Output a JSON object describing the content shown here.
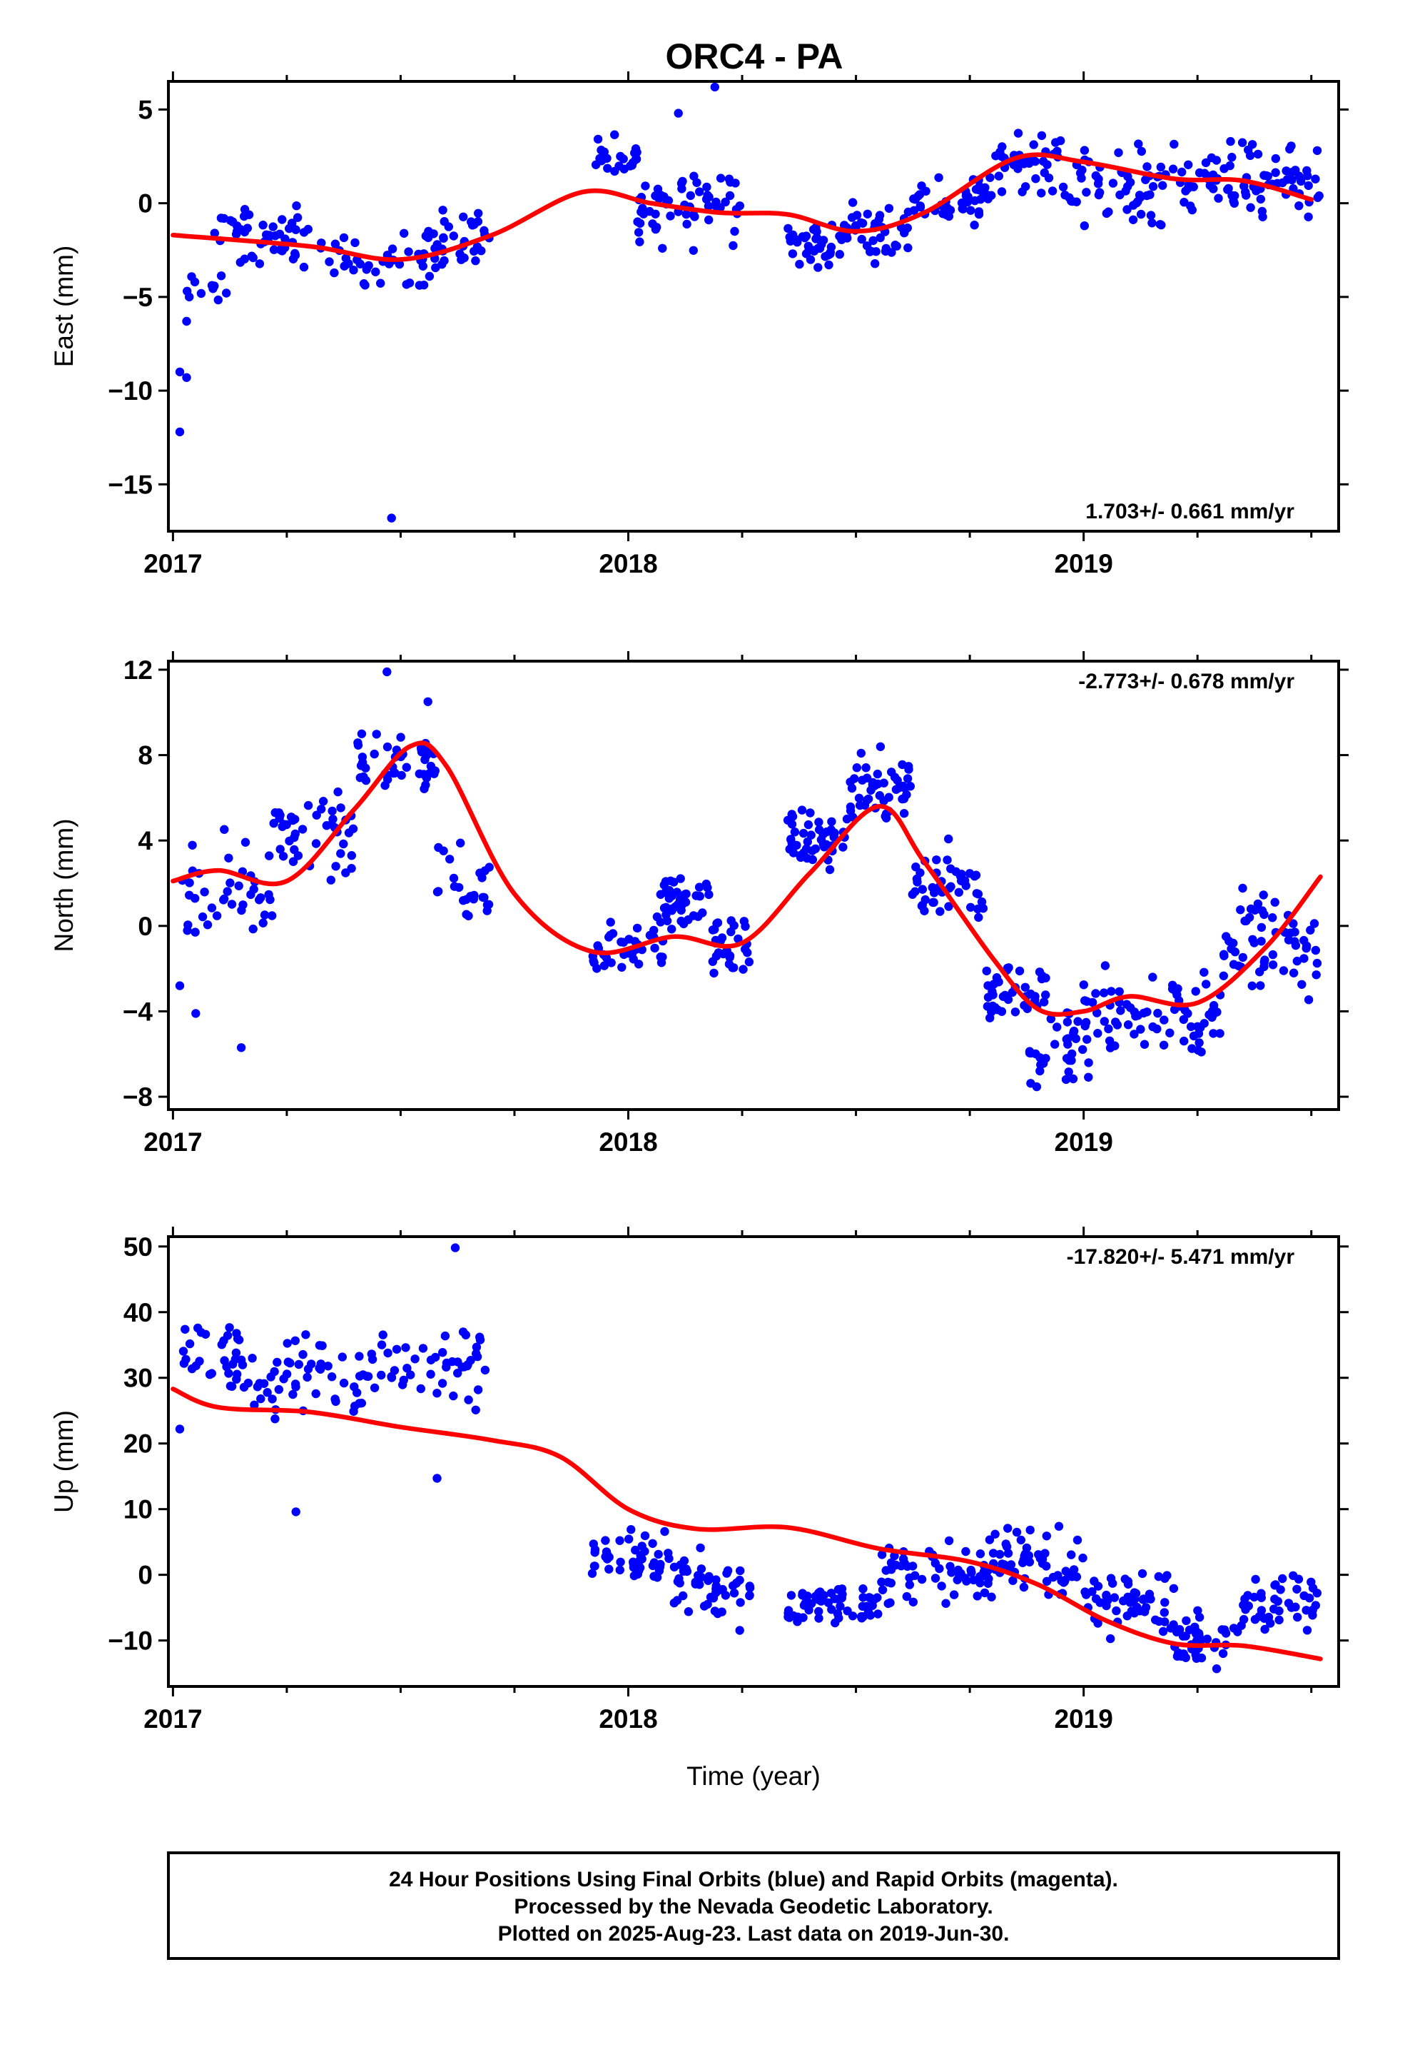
{
  "title": "ORC4 - PA",
  "footer": {
    "lines": [
      "24 Hour Positions Using Final Orbits (blue) and Rapid Orbits (magenta).",
      "Processed by the Nevada Geodetic Laboratory.",
      "Plotted on 2025-Aug-23. Last data on 2019-Jun-30."
    ]
  },
  "colors": {
    "points": "#0000ff",
    "fit": "#ff0000",
    "frame": "#000000"
  },
  "chart_data": [
    {
      "type": "scatter",
      "name": "east",
      "title": "",
      "ylabel": "East (mm)",
      "xlabel": "",
      "xlim": [
        2016.99,
        2019.56
      ],
      "ylim": [
        -17.5,
        6.5
      ],
      "yticks": [
        5,
        0,
        -5,
        -10,
        -15
      ],
      "ytick_labels": [
        "5",
        "0",
        "−5",
        "−10",
        "−15"
      ],
      "xticks": [
        2017,
        2018,
        2019
      ],
      "xtick_labels": [
        "2017",
        "2018",
        "2019"
      ],
      "rate_text": "1.703+/- 0.661 mm/yr",
      "rate_position": "bottom-right",
      "gaps": [
        [
          2017.7,
          2017.92
        ],
        [
          2018.27,
          2018.35
        ]
      ],
      "outliers": [
        [
          2017.015,
          -12.2
        ],
        [
          2017.015,
          -9.0
        ],
        [
          2017.03,
          -9.3
        ],
        [
          2017.03,
          -6.3
        ],
        [
          2017.48,
          -16.8
        ],
        [
          2018.19,
          6.2
        ],
        [
          2018.11,
          4.8
        ]
      ],
      "fit_knots": [
        [
          2017.0,
          -1.7
        ],
        [
          2017.3,
          -2.3
        ],
        [
          2017.5,
          -3.0
        ],
        [
          2017.7,
          -1.7
        ],
        [
          2017.9,
          0.6
        ],
        [
          2018.05,
          0.0
        ],
        [
          2018.2,
          -0.5
        ],
        [
          2018.35,
          -0.6
        ],
        [
          2018.5,
          -1.5
        ],
        [
          2018.65,
          -0.5
        ],
        [
          2018.85,
          2.4
        ],
        [
          2019.0,
          2.2
        ],
        [
          2019.2,
          1.3
        ],
        [
          2019.35,
          1.2
        ],
        [
          2019.5,
          0.2
        ]
      ],
      "point_regions": [
        {
          "x": [
            2017.02,
            2017.12
          ],
          "y": [
            -6.0,
            -3.5
          ],
          "n": 10
        },
        {
          "x": [
            2017.08,
            2017.35
          ],
          "y": [
            -4.5,
            0.5
          ],
          "n": 55
        },
        {
          "x": [
            2017.35,
            2017.6
          ],
          "y": [
            -5.0,
            -1.0
          ],
          "n": 45
        },
        {
          "x": [
            2017.55,
            2017.7
          ],
          "y": [
            -4.0,
            0.5
          ],
          "n": 30
        },
        {
          "x": [
            2017.92,
            2018.02
          ],
          "y": [
            0.5,
            4.0
          ],
          "n": 25
        },
        {
          "x": [
            2018.02,
            2018.25
          ],
          "y": [
            -3.0,
            3.0
          ],
          "n": 60
        },
        {
          "x": [
            2018.35,
            2018.45
          ],
          "y": [
            -4.2,
            -0.5
          ],
          "n": 35
        },
        {
          "x": [
            2018.45,
            2018.62
          ],
          "y": [
            -3.5,
            0.5
          ],
          "n": 45
        },
        {
          "x": [
            2018.62,
            2018.8
          ],
          "y": [
            -1.5,
            2.0
          ],
          "n": 45
        },
        {
          "x": [
            2018.8,
            2018.95
          ],
          "y": [
            0.0,
            4.5
          ],
          "n": 40
        },
        {
          "x": [
            2018.95,
            2019.25
          ],
          "y": [
            -2.0,
            3.8
          ],
          "n": 70
        },
        {
          "x": [
            2019.25,
            2019.52
          ],
          "y": [
            -1.5,
            4.0
          ],
          "n": 70
        }
      ]
    },
    {
      "type": "scatter",
      "name": "north",
      "title": "",
      "ylabel": "North (mm)",
      "xlabel": "",
      "xlim": [
        2016.99,
        2019.56
      ],
      "ylim": [
        -8.6,
        12.4
      ],
      "yticks": [
        12,
        8,
        4,
        0,
        -4,
        -8
      ],
      "ytick_labels": [
        "12",
        "8",
        "4",
        "0",
        "−4",
        "−8"
      ],
      "xticks": [
        2017,
        2018,
        2019
      ],
      "xtick_labels": [
        "2017",
        "2018",
        "2019"
      ],
      "rate_text": "-2.773+/- 0.678 mm/yr",
      "rate_position": "top-right",
      "gaps": [
        [
          2017.7,
          2017.92
        ],
        [
          2018.27,
          2018.35
        ]
      ],
      "outliers": [
        [
          2017.015,
          -2.8
        ],
        [
          2017.05,
          -4.1
        ],
        [
          2017.15,
          -5.7
        ],
        [
          2017.47,
          11.9
        ],
        [
          2017.56,
          10.5
        ]
      ],
      "fit_knots": [
        [
          2017.0,
          2.1
        ],
        [
          2017.1,
          2.6
        ],
        [
          2017.25,
          2.1
        ],
        [
          2017.4,
          5.5
        ],
        [
          2017.52,
          8.4
        ],
        [
          2017.6,
          7.5
        ],
        [
          2017.75,
          1.5
        ],
        [
          2017.92,
          -1.2
        ],
        [
          2018.1,
          -0.5
        ],
        [
          2018.25,
          -0.8
        ],
        [
          2018.4,
          2.5
        ],
        [
          2018.55,
          5.6
        ],
        [
          2018.65,
          3.0
        ],
        [
          2018.8,
          -1.5
        ],
        [
          2018.9,
          -3.9
        ],
        [
          2019.0,
          -4.0
        ],
        [
          2019.1,
          -3.3
        ],
        [
          2019.25,
          -3.6
        ],
        [
          2019.4,
          -1.0
        ],
        [
          2019.52,
          2.3
        ]
      ],
      "point_regions": [
        {
          "x": [
            2017.02,
            2017.22
          ],
          "y": [
            -2.0,
            5.0
          ],
          "n": 40
        },
        {
          "x": [
            2017.22,
            2017.4
          ],
          "y": [
            1.0,
            7.0
          ],
          "n": 45
        },
        {
          "x": [
            2017.4,
            2017.58
          ],
          "y": [
            5.5,
            9.5
          ],
          "n": 45
        },
        {
          "x": [
            2017.58,
            2017.7
          ],
          "y": [
            -1.5,
            5.0
          ],
          "n": 25
        },
        {
          "x": [
            2017.92,
            2018.08
          ],
          "y": [
            -3.0,
            0.8
          ],
          "n": 40
        },
        {
          "x": [
            2018.06,
            2018.18
          ],
          "y": [
            -1.0,
            3.2
          ],
          "n": 40
        },
        {
          "x": [
            2018.18,
            2018.27
          ],
          "y": [
            -3.0,
            1.2
          ],
          "n": 30
        },
        {
          "x": [
            2018.35,
            2018.48
          ],
          "y": [
            2.0,
            6.0
          ],
          "n": 45
        },
        {
          "x": [
            2018.48,
            2018.62
          ],
          "y": [
            4.0,
            8.7
          ],
          "n": 50
        },
        {
          "x": [
            2018.62,
            2018.78
          ],
          "y": [
            -1.0,
            4.5
          ],
          "n": 45
        },
        {
          "x": [
            2018.78,
            2018.92
          ],
          "y": [
            -5.0,
            -1.0
          ],
          "n": 40
        },
        {
          "x": [
            2018.88,
            2019.02
          ],
          "y": [
            -8.2,
            -3.5
          ],
          "n": 35
        },
        {
          "x": [
            2019.0,
            2019.3
          ],
          "y": [
            -7.0,
            -1.0
          ],
          "n": 75
        },
        {
          "x": [
            2019.3,
            2019.52
          ],
          "y": [
            -4.5,
            2.8
          ],
          "n": 60
        }
      ]
    },
    {
      "type": "scatter",
      "name": "up",
      "title": "",
      "ylabel": "Up (mm)",
      "xlabel": "Time (year)",
      "xlim": [
        2016.99,
        2019.56
      ],
      "ylim": [
        -17,
        51.5
      ],
      "yticks": [
        50,
        40,
        30,
        20,
        10,
        0,
        -10
      ],
      "ytick_labels": [
        "50",
        "40",
        "30",
        "20",
        "10",
        "0",
        "−10"
      ],
      "xticks": [
        2017,
        2018,
        2019
      ],
      "xtick_labels": [
        "2017",
        "2018",
        "2019"
      ],
      "rate_text": "-17.820+/- 5.471 mm/yr",
      "rate_position": "top-right",
      "gaps": [
        [
          2017.7,
          2017.92
        ],
        [
          2018.27,
          2018.35
        ]
      ],
      "outliers": [
        [
          2017.27,
          9.6
        ],
        [
          2017.58,
          14.7
        ],
        [
          2017.62,
          49.8
        ],
        [
          2017.015,
          22.2
        ]
      ],
      "fit_knots": [
        [
          2017.0,
          28.3
        ],
        [
          2017.1,
          25.5
        ],
        [
          2017.3,
          24.8
        ],
        [
          2017.5,
          22.5
        ],
        [
          2017.7,
          20.5
        ],
        [
          2017.85,
          18.0
        ],
        [
          2018.0,
          10.0
        ],
        [
          2018.15,
          7.0
        ],
        [
          2018.35,
          7.2
        ],
        [
          2018.55,
          4.0
        ],
        [
          2018.75,
          2.0
        ],
        [
          2018.9,
          -1.5
        ],
        [
          2019.05,
          -7.0
        ],
        [
          2019.2,
          -10.5
        ],
        [
          2019.35,
          -10.8
        ],
        [
          2019.52,
          -12.8
        ]
      ],
      "point_regions": [
        {
          "x": [
            2017.02,
            2017.15
          ],
          "y": [
            25.0,
            43.5
          ],
          "n": 25
        },
        {
          "x": [
            2017.12,
            2017.45
          ],
          "y": [
            20.5,
            39.0
          ],
          "n": 65
        },
        {
          "x": [
            2017.45,
            2017.7
          ],
          "y": [
            23.0,
            42.0
          ],
          "n": 45
        },
        {
          "x": [
            2017.92,
            2018.1
          ],
          "y": [
            -3.0,
            8.0
          ],
          "n": 45
        },
        {
          "x": [
            2018.1,
            2018.27
          ],
          "y": [
            -9.5,
            6.0
          ],
          "n": 50
        },
        {
          "x": [
            2018.35,
            2018.55
          ],
          "y": [
            -9.0,
            0.0
          ],
          "n": 60
        },
        {
          "x": [
            2018.55,
            2018.8
          ],
          "y": [
            -6.0,
            6.5
          ],
          "n": 65
        },
        {
          "x": [
            2018.8,
            2019.0
          ],
          "y": [
            -6.0,
            9.0
          ],
          "n": 55
        },
        {
          "x": [
            2019.0,
            2019.2
          ],
          "y": [
            -12.0,
            4.0
          ],
          "n": 55
        },
        {
          "x": [
            2019.2,
            2019.35
          ],
          "y": [
            -15.0,
            -4.0
          ],
          "n": 40
        },
        {
          "x": [
            2019.35,
            2019.52
          ],
          "y": [
            -10.0,
            1.5
          ],
          "n": 45
        }
      ]
    }
  ]
}
